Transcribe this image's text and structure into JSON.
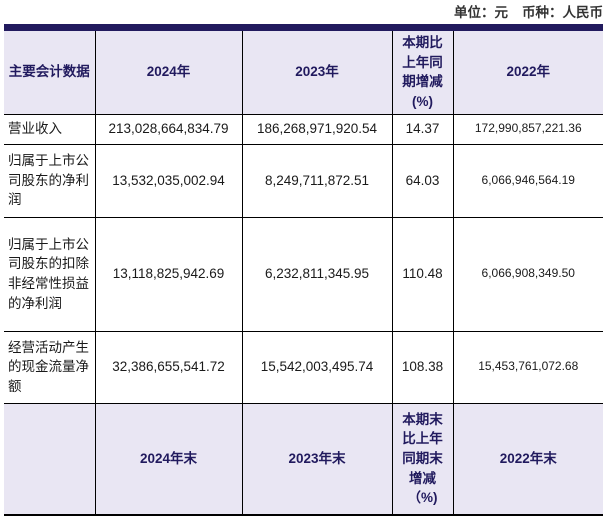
{
  "meta": {
    "unit_text": "单位：元",
    "currency_text": "币种：人民币"
  },
  "colors": {
    "band": "#221a5e",
    "header_background": "#e9e6f3",
    "header_text": "#211a5e",
    "border": "#000000"
  },
  "table": {
    "header": [
      "主要会计数据",
      "2024年",
      "2023年",
      "本期比上年同期增减(%)",
      "2022年"
    ],
    "rows": [
      {
        "label": "营业收入",
        "values": [
          "213,028,664,834.79",
          "186,268,971,920.54",
          "14.37",
          "172,990,857,221.36"
        ]
      },
      {
        "label": "归属于上市公司股东的净利润",
        "values": [
          "13,532,035,002.94",
          "8,249,711,872.51",
          "64.03",
          "6,066,946,564.19"
        ]
      },
      {
        "label": "归属于上市公司股东的扣除非经常性损益的净利润",
        "values": [
          "13,118,825,942.69",
          "6,232,811,345.95",
          "110.48",
          "6,066,908,349.50"
        ]
      },
      {
        "label": "经营活动产生的现金流量净额",
        "values": [
          "32,386,655,541.72",
          "15,542,003,495.74",
          "108.38",
          "15,453,761,072.68"
        ]
      }
    ],
    "footer_header": [
      "",
      "2024年末",
      "2023年末",
      "本期末比上年同期末增减（%)",
      "2022年末"
    ]
  }
}
